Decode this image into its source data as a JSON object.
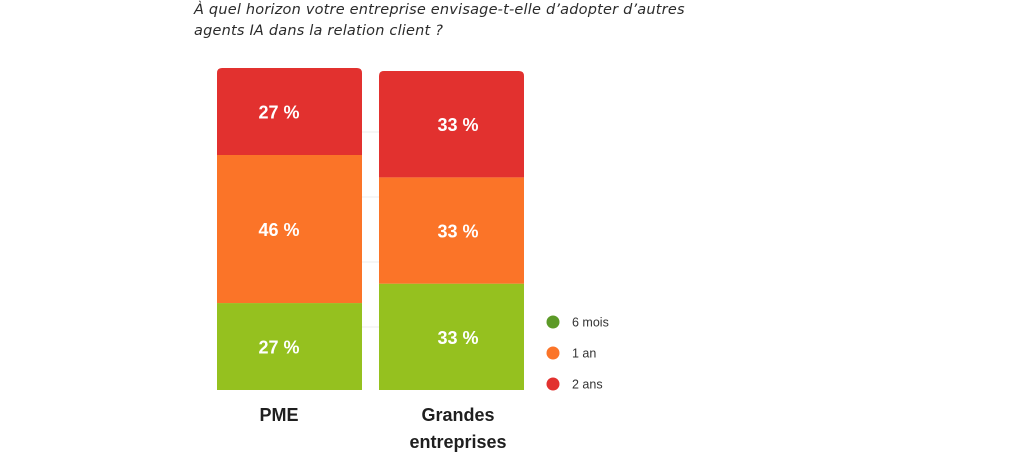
{
  "question": {
    "line1": "À quel horizon votre entreprise envisage-t-elle d’adopter d’autres",
    "line2": "agents IA dans la relation client ?"
  },
  "chart_data": {
    "type": "bar",
    "stacked": true,
    "categories": [
      "PME",
      "Grandes entreprises"
    ],
    "category_lines": [
      [
        "PME"
      ],
      [
        "Grandes",
        "entreprises"
      ]
    ],
    "unit": "%",
    "ylim": [
      0,
      100
    ],
    "grid": false,
    "legend_position": "right",
    "series": [
      {
        "name": "6 mois",
        "color": "#95c11f",
        "values": [
          27,
          33
        ]
      },
      {
        "name": "1 an",
        "color": "#fb7428",
        "values": [
          46,
          33
        ]
      },
      {
        "name": "2 ans",
        "color": "#e2312f",
        "values": [
          27,
          33
        ]
      }
    ],
    "legend_colors": [
      "#5c9a27",
      "#fb7428",
      "#e2312f"
    ],
    "label_color": "#ffffff"
  }
}
